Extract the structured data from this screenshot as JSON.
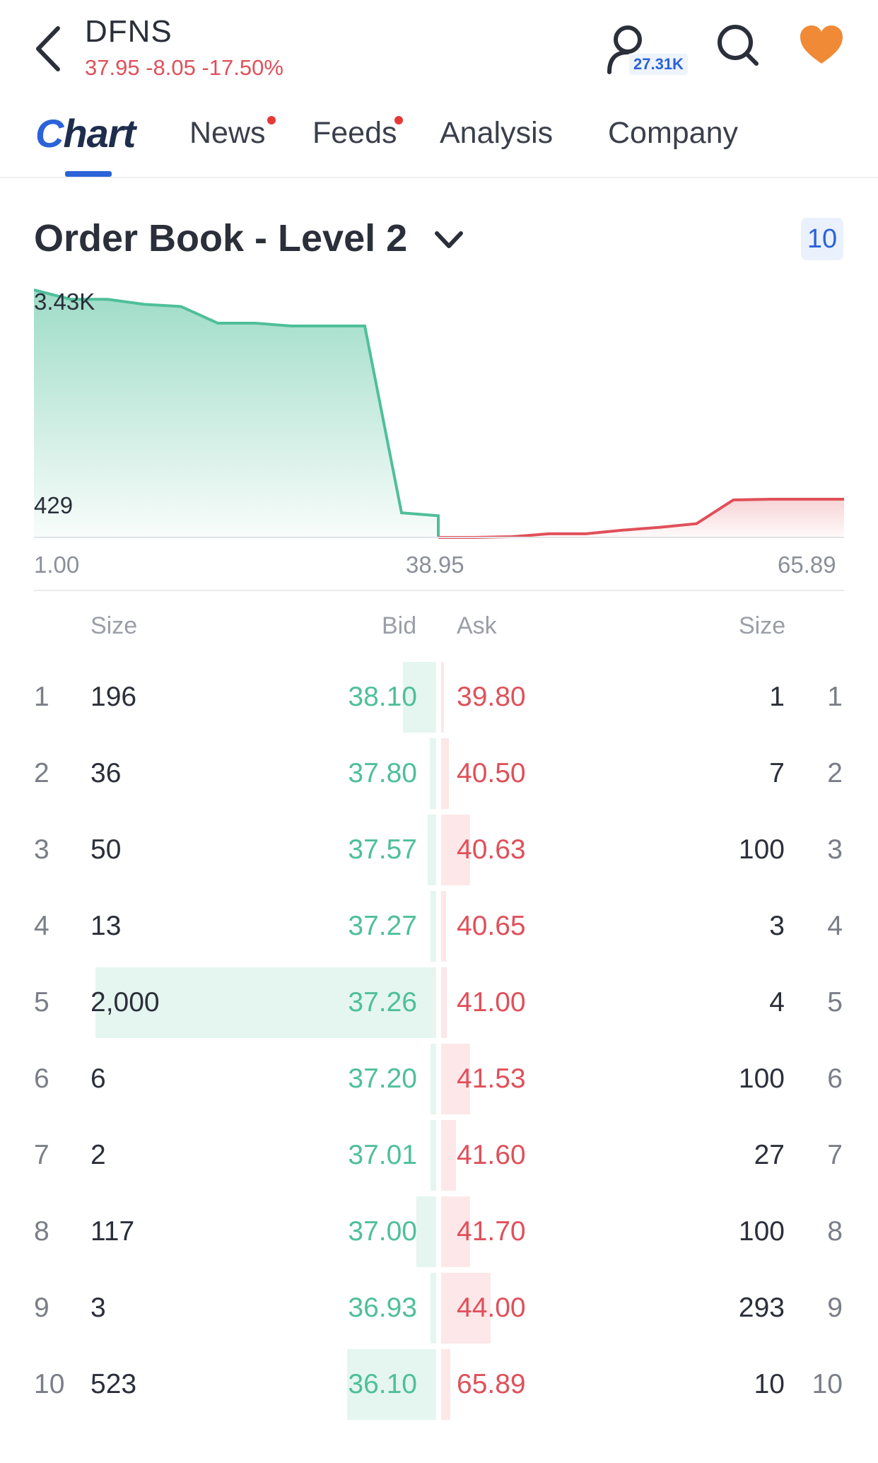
{
  "header": {
    "ticker": "DFNS",
    "quote": "37.95 -8.05 -17.50%",
    "watchers_count": "27.31K",
    "icons": [
      "back-arrow-icon",
      "user-icon",
      "search-icon",
      "heart-icon"
    ]
  },
  "tabs": [
    {
      "label": "hart",
      "prefix": "C",
      "active": true
    },
    {
      "label": "News",
      "dot": true
    },
    {
      "label": "Feeds",
      "dot": true
    },
    {
      "label": "Analysis"
    },
    {
      "label": "Company"
    }
  ],
  "order_book": {
    "title": "Order Book - Level 2",
    "depth_badge": "10",
    "columns": {
      "size_left": "Size",
      "bid": "Bid",
      "ask": "Ask",
      "size_right": "Size"
    },
    "rows": [
      {
        "rank": "1",
        "bid_size": "196",
        "bid": "38.10",
        "ask": "39.80",
        "ask_size": "1",
        "ask_rank": "1"
      },
      {
        "rank": "2",
        "bid_size": "36",
        "bid": "37.80",
        "ask": "40.50",
        "ask_size": "7",
        "ask_rank": "2"
      },
      {
        "rank": "3",
        "bid_size": "50",
        "bid": "37.57",
        "ask": "40.63",
        "ask_size": "100",
        "ask_rank": "3"
      },
      {
        "rank": "4",
        "bid_size": "13",
        "bid": "37.27",
        "ask": "40.65",
        "ask_size": "3",
        "ask_rank": "4"
      },
      {
        "rank": "5",
        "bid_size": "2,000",
        "bid": "37.26",
        "ask": "41.00",
        "ask_size": "4",
        "ask_rank": "5"
      },
      {
        "rank": "6",
        "bid_size": "6",
        "bid": "37.20",
        "ask": "41.53",
        "ask_size": "100",
        "ask_rank": "6"
      },
      {
        "rank": "7",
        "bid_size": "2",
        "bid": "37.01",
        "ask": "41.60",
        "ask_size": "27",
        "ask_rank": "7"
      },
      {
        "rank": "8",
        "bid_size": "117",
        "bid": "37.00",
        "ask": "41.70",
        "ask_size": "100",
        "ask_rank": "8"
      },
      {
        "rank": "9",
        "bid_size": "3",
        "bid": "36.93",
        "ask": "44.00",
        "ask_size": "293",
        "ask_rank": "9"
      },
      {
        "rank": "10",
        "bid_size": "523",
        "bid": "36.10",
        "ask": "65.89",
        "ask_size": "10",
        "ask_rank": "10"
      }
    ]
  },
  "chart_data": {
    "type": "area",
    "title": "",
    "y_labels": [
      "3.43K",
      "429"
    ],
    "x_labels": [
      "1.00",
      "38.95",
      "65.89"
    ],
    "series": [
      {
        "color": "#4fbf9a",
        "x": [
          1.0,
          2.4,
          4.6,
          5.4,
          6.8,
          8.2,
          9.6,
          12.5,
          13.9,
          15.3,
          18.2,
          19.6
        ],
        "y": [
          3430,
          3300,
          3300,
          3230,
          3200,
          2970,
          2970,
          2930,
          2930,
          2930,
          340,
          300
        ]
      },
      {
        "color": "#e0505a",
        "x": [
          38.95,
          42.0,
          45.0,
          48.0,
          51.0,
          53.0,
          56.0,
          57.5,
          60.0,
          61.0,
          63.5,
          65.89
        ],
        "y": [
          0,
          0,
          10,
          50,
          50,
          100,
          140,
          190,
          520,
          529,
          529,
          529
        ]
      }
    ],
    "colors": {
      "bid": "#4fbf9a",
      "ask": "#e0505a"
    }
  }
}
